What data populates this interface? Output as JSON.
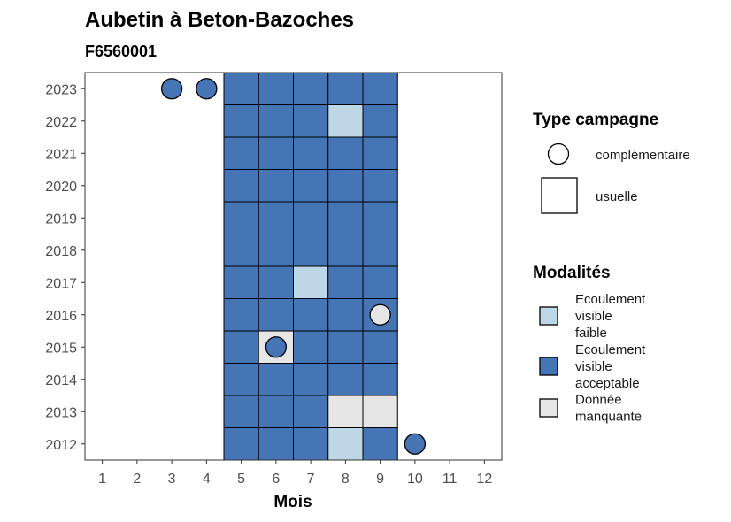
{
  "chart_data": {
    "type": "heatmap",
    "title": "Aubetin à Beton-Bazoches",
    "subtitle": "F6560001",
    "xlabel": "Mois",
    "ylabel": "",
    "x_ticks": [
      1,
      2,
      3,
      4,
      5,
      6,
      7,
      8,
      9,
      10,
      11,
      12
    ],
    "y_ticks": [
      2012,
      2013,
      2014,
      2015,
      2016,
      2017,
      2018,
      2019,
      2020,
      2021,
      2022,
      2023
    ],
    "xlim": [
      0.5,
      12.5
    ],
    "ylim": [
      2011.5,
      2023.5
    ],
    "categories": {
      "faible": {
        "label_lines": [
          "Ecoulement",
          "visible",
          "faible"
        ],
        "color": "#bdd7e7"
      },
      "acceptable": {
        "label_lines": [
          "Ecoulement",
          "visible",
          "acceptable"
        ],
        "color": "#4575b4"
      },
      "manquante": {
        "label_lines": [
          "Donnée",
          "manquante"
        ],
        "color": "#e6e6e6"
      }
    },
    "legend_type": {
      "title": "Type campagne",
      "items": [
        {
          "shape": "circle",
          "label": "complémentaire"
        },
        {
          "shape": "square",
          "label": "usuelle"
        }
      ]
    },
    "legend_modalites": {
      "title": "Modalités"
    },
    "legend_placement": "right",
    "grid": false,
    "observations": [
      {
        "year": 2023,
        "month": 3,
        "type": "complémentaire",
        "modalite": "acceptable"
      },
      {
        "year": 2023,
        "month": 4,
        "type": "complémentaire",
        "modalite": "acceptable"
      },
      {
        "year": 2023,
        "month": 5,
        "type": "usuelle",
        "modalite": "acceptable"
      },
      {
        "year": 2023,
        "month": 6,
        "type": "usuelle",
        "modalite": "acceptable"
      },
      {
        "year": 2023,
        "month": 7,
        "type": "usuelle",
        "modalite": "acceptable"
      },
      {
        "year": 2023,
        "month": 8,
        "type": "usuelle",
        "modalite": "acceptable"
      },
      {
        "year": 2023,
        "month": 9,
        "type": "usuelle",
        "modalite": "acceptable"
      },
      {
        "year": 2022,
        "month": 5,
        "type": "usuelle",
        "modalite": "acceptable"
      },
      {
        "year": 2022,
        "month": 6,
        "type": "usuelle",
        "modalite": "acceptable"
      },
      {
        "year": 2022,
        "month": 7,
        "type": "usuelle",
        "modalite": "acceptable"
      },
      {
        "year": 2022,
        "month": 8,
        "type": "usuelle",
        "modalite": "faible"
      },
      {
        "year": 2022,
        "month": 9,
        "type": "usuelle",
        "modalite": "acceptable"
      },
      {
        "year": 2021,
        "month": 5,
        "type": "usuelle",
        "modalite": "acceptable"
      },
      {
        "year": 2021,
        "month": 6,
        "type": "usuelle",
        "modalite": "acceptable"
      },
      {
        "year": 2021,
        "month": 7,
        "type": "usuelle",
        "modalite": "acceptable"
      },
      {
        "year": 2021,
        "month": 8,
        "type": "usuelle",
        "modalite": "acceptable"
      },
      {
        "year": 2021,
        "month": 9,
        "type": "usuelle",
        "modalite": "acceptable"
      },
      {
        "year": 2020,
        "month": 5,
        "type": "usuelle",
        "modalite": "acceptable"
      },
      {
        "year": 2020,
        "month": 6,
        "type": "usuelle",
        "modalite": "acceptable"
      },
      {
        "year": 2020,
        "month": 7,
        "type": "usuelle",
        "modalite": "acceptable"
      },
      {
        "year": 2020,
        "month": 8,
        "type": "usuelle",
        "modalite": "acceptable"
      },
      {
        "year": 2020,
        "month": 9,
        "type": "usuelle",
        "modalite": "acceptable"
      },
      {
        "year": 2019,
        "month": 5,
        "type": "usuelle",
        "modalite": "acceptable"
      },
      {
        "year": 2019,
        "month": 6,
        "type": "usuelle",
        "modalite": "acceptable"
      },
      {
        "year": 2019,
        "month": 7,
        "type": "usuelle",
        "modalite": "acceptable"
      },
      {
        "year": 2019,
        "month": 8,
        "type": "usuelle",
        "modalite": "acceptable"
      },
      {
        "year": 2019,
        "month": 9,
        "type": "usuelle",
        "modalite": "acceptable"
      },
      {
        "year": 2018,
        "month": 5,
        "type": "usuelle",
        "modalite": "acceptable"
      },
      {
        "year": 2018,
        "month": 6,
        "type": "usuelle",
        "modalite": "acceptable"
      },
      {
        "year": 2018,
        "month": 7,
        "type": "usuelle",
        "modalite": "acceptable"
      },
      {
        "year": 2018,
        "month": 8,
        "type": "usuelle",
        "modalite": "acceptable"
      },
      {
        "year": 2018,
        "month": 9,
        "type": "usuelle",
        "modalite": "acceptable"
      },
      {
        "year": 2017,
        "month": 5,
        "type": "usuelle",
        "modalite": "acceptable"
      },
      {
        "year": 2017,
        "month": 6,
        "type": "usuelle",
        "modalite": "acceptable"
      },
      {
        "year": 2017,
        "month": 7,
        "type": "usuelle",
        "modalite": "faible"
      },
      {
        "year": 2017,
        "month": 8,
        "type": "usuelle",
        "modalite": "acceptable"
      },
      {
        "year": 2017,
        "month": 9,
        "type": "usuelle",
        "modalite": "acceptable"
      },
      {
        "year": 2016,
        "month": 5,
        "type": "usuelle",
        "modalite": "acceptable"
      },
      {
        "year": 2016,
        "month": 6,
        "type": "usuelle",
        "modalite": "acceptable"
      },
      {
        "year": 2016,
        "month": 7,
        "type": "usuelle",
        "modalite": "acceptable"
      },
      {
        "year": 2016,
        "month": 8,
        "type": "usuelle",
        "modalite": "acceptable"
      },
      {
        "year": 2016,
        "month": 9,
        "type": "usuelle",
        "modalite": "acceptable"
      },
      {
        "year": 2016,
        "month": 9,
        "type": "complémentaire",
        "modalite": "manquante"
      },
      {
        "year": 2015,
        "month": 5,
        "type": "usuelle",
        "modalite": "acceptable"
      },
      {
        "year": 2015,
        "month": 6,
        "type": "usuelle",
        "modalite": "manquante"
      },
      {
        "year": 2015,
        "month": 6,
        "type": "complémentaire",
        "modalite": "acceptable"
      },
      {
        "year": 2015,
        "month": 7,
        "type": "usuelle",
        "modalite": "acceptable"
      },
      {
        "year": 2015,
        "month": 8,
        "type": "usuelle",
        "modalite": "acceptable"
      },
      {
        "year": 2015,
        "month": 9,
        "type": "usuelle",
        "modalite": "acceptable"
      },
      {
        "year": 2014,
        "month": 5,
        "type": "usuelle",
        "modalite": "acceptable"
      },
      {
        "year": 2014,
        "month": 6,
        "type": "usuelle",
        "modalite": "acceptable"
      },
      {
        "year": 2014,
        "month": 7,
        "type": "usuelle",
        "modalite": "acceptable"
      },
      {
        "year": 2014,
        "month": 8,
        "type": "usuelle",
        "modalite": "acceptable"
      },
      {
        "year": 2014,
        "month": 9,
        "type": "usuelle",
        "modalite": "acceptable"
      },
      {
        "year": 2013,
        "month": 5,
        "type": "usuelle",
        "modalite": "acceptable"
      },
      {
        "year": 2013,
        "month": 6,
        "type": "usuelle",
        "modalite": "acceptable"
      },
      {
        "year": 2013,
        "month": 7,
        "type": "usuelle",
        "modalite": "acceptable"
      },
      {
        "year": 2013,
        "month": 8,
        "type": "usuelle",
        "modalite": "manquante"
      },
      {
        "year": 2013,
        "month": 9,
        "type": "usuelle",
        "modalite": "manquante"
      },
      {
        "year": 2012,
        "month": 5,
        "type": "usuelle",
        "modalite": "acceptable"
      },
      {
        "year": 2012,
        "month": 6,
        "type": "usuelle",
        "modalite": "acceptable"
      },
      {
        "year": 2012,
        "month": 7,
        "type": "usuelle",
        "modalite": "acceptable"
      },
      {
        "year": 2012,
        "month": 8,
        "type": "usuelle",
        "modalite": "faible"
      },
      {
        "year": 2012,
        "month": 9,
        "type": "usuelle",
        "modalite": "acceptable"
      },
      {
        "year": 2012,
        "month": 10,
        "type": "complémentaire",
        "modalite": "acceptable"
      }
    ]
  }
}
